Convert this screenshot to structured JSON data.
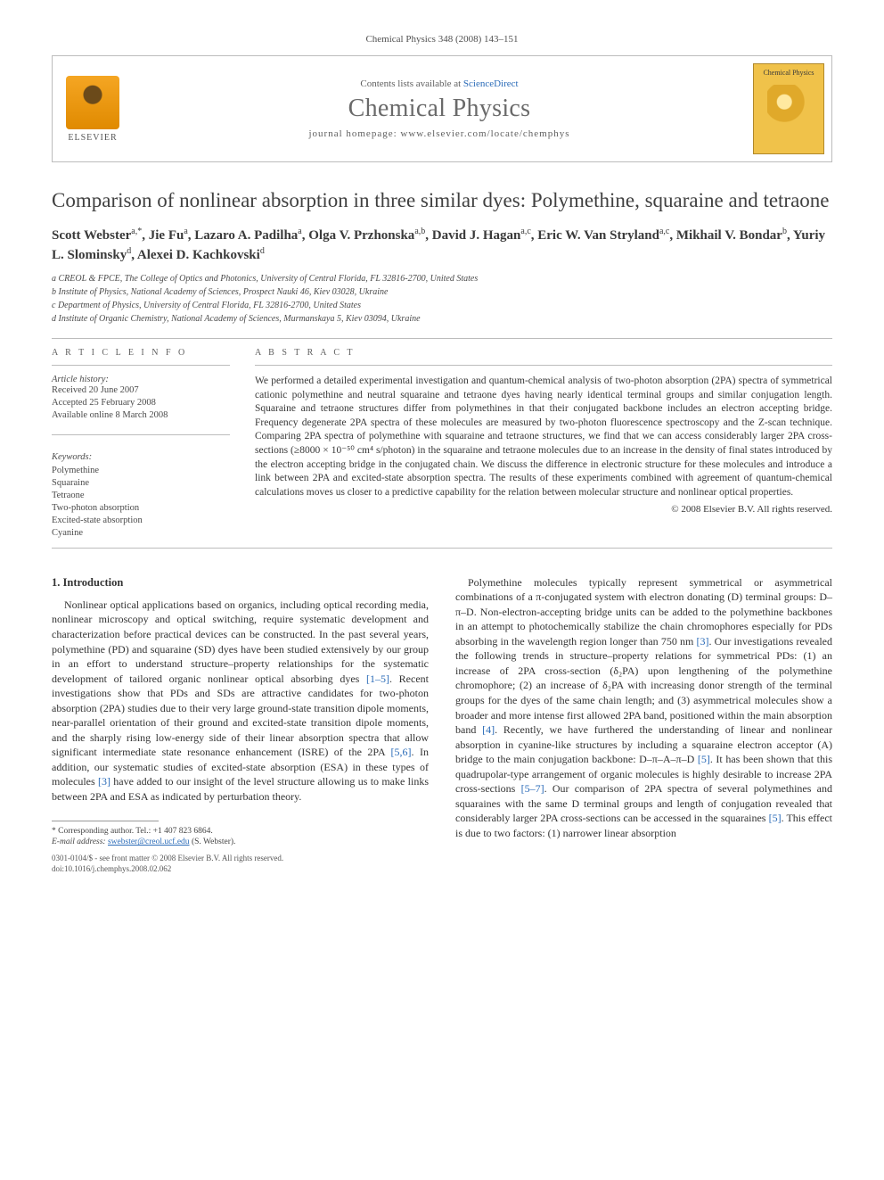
{
  "header": {
    "citation": "Chemical Physics 348 (2008) 143–151",
    "contents_prefix": "Contents lists available at ",
    "contents_link": "ScienceDirect",
    "journal_name": "Chemical Physics",
    "homepage_prefix": "journal homepage: ",
    "homepage_url": "www.elsevier.com/locate/chemphys",
    "publisher": "ELSEVIER",
    "cover_label": "Chemical Physics"
  },
  "article": {
    "title": "Comparison of nonlinear absorption in three similar dyes: Polymethine, squaraine and tetraone",
    "authors_html": "Scott Webster<sup>a,*</sup>, Jie Fu<sup>a</sup>, Lazaro A. Padilha<sup>a</sup>, Olga V. Przhonska<sup>a,b</sup>, David J. Hagan<sup>a,c</sup>, Eric W. Van Stryland<sup>a,c</sup>, Mikhail V. Bondar<sup>b</sup>, Yuriy L. Slominsky<sup>d</sup>, Alexei D. Kachkovski<sup>d</sup>",
    "affiliations": [
      "a CREOL & FPCE, The College of Optics and Photonics, University of Central Florida, FL 32816-2700, United States",
      "b Institute of Physics, National Academy of Sciences, Prospect Nauki 46, Kiev 03028, Ukraine",
      "c Department of Physics, University of Central Florida, FL 32816-2700, United States",
      "d Institute of Organic Chemistry, National Academy of Sciences, Murmanskaya 5, Kiev 03094, Ukraine"
    ]
  },
  "info": {
    "heading": "A R T I C L E   I N F O",
    "history_heading": "Article history:",
    "history": [
      "Received 20 June 2007",
      "Accepted 25 February 2008",
      "Available online 8 March 2008"
    ],
    "keywords_heading": "Keywords:",
    "keywords": [
      "Polymethine",
      "Squaraine",
      "Tetraone",
      "Two-photon absorption",
      "Excited-state absorption",
      "Cyanine"
    ]
  },
  "abstract": {
    "heading": "A B S T R A C T",
    "text": "We performed a detailed experimental investigation and quantum-chemical analysis of two-photon absorption (2PA) spectra of symmetrical cationic polymethine and neutral squaraine and tetraone dyes having nearly identical terminal groups and similar conjugation length. Squaraine and tetraone structures differ from polymethines in that their conjugated backbone includes an electron accepting bridge. Frequency degenerate 2PA spectra of these molecules are measured by two-photon fluorescence spectroscopy and the Z-scan technique. Comparing 2PA spectra of polymethine with squaraine and tetraone structures, we find that we can access considerably larger 2PA cross-sections (≥8000 × 10⁻⁵⁰ cm⁴ s/photon) in the squaraine and tetraone molecules due to an increase in the density of final states introduced by the electron accepting bridge in the conjugated chain. We discuss the difference in electronic structure for these molecules and introduce a link between 2PA and excited-state absorption spectra. The results of these experiments combined with agreement of quantum-chemical calculations moves us closer to a predictive capability for the relation between molecular structure and nonlinear optical properties.",
    "copyright": "© 2008 Elsevier B.V. All rights reserved."
  },
  "body": {
    "section1_heading": "1. Introduction",
    "col1_p1": "Nonlinear optical applications based on organics, including optical recording media, nonlinear microscopy and optical switching, require systematic development and characterization before practical devices can be constructed. In the past several years, polymethine (PD) and squaraine (SD) dyes have been studied extensively by our group in an effort to understand structure–property relationships for the systematic development of tailored organic nonlinear optical absorbing dyes [1–5]. Recent investigations show that PDs and SDs are attractive candidates for two-photon absorption (2PA) studies due to their very large ground-state transition dipole moments, near-parallel orientation of their ground and excited-state transition dipole moments, and the sharply rising low-energy side of their linear absorption spectra that allow significant intermediate state resonance enhancement (ISRE) of the 2PA [5,6]. In addition, our systematic studies of excited-state absorption (ESA) in these types of molecules [3] have added to our insight of the level structure allowing us to make links between 2PA and ESA as indicated by perturbation theory.",
    "col2_p1": "Polymethine molecules typically represent symmetrical or asymmetrical combinations of a π-conjugated system with electron donating (D) terminal groups: D–π–D. Non-electron-accepting bridge units can be added to the polymethine backbones in an attempt to photochemically stabilize the chain chromophores especially for PDs absorbing in the wavelength region longer than 750 nm [3]. Our investigations revealed the following trends in structure–property relations for symmetrical PDs: (1) an increase of 2PA cross-section (δ₂PA) upon lengthening of the polymethine chromophore; (2) an increase of δ₂PA with increasing donor strength of the terminal groups for the dyes of the same chain length; and (3) asymmetrical molecules show a broader and more intense first allowed 2PA band, positioned within the main absorption band [4]. Recently, we have furthered the understanding of linear and nonlinear absorption in cyanine-like structures by including a squaraine electron acceptor (A) bridge to the main conjugation backbone: D–π–A–π–D [5]. It has been shown that this quadrupolar-type arrangement of organic molecules is highly desirable to increase 2PA cross-sections [5–7]. Our comparison of 2PA spectra of several polymethines and squaraines with the same D terminal groups and length of conjugation revealed that considerably larger 2PA cross-sections can be accessed in the squaraines [5]. This effect is due to two factors: (1) narrower linear absorption"
  },
  "footnote": {
    "corr": "* Corresponding author. Tel.: +1 407 823 6864.",
    "email_label": "E-mail address: ",
    "email": "swebster@creol.ucf.edu",
    "email_suffix": " (S. Webster)."
  },
  "footer": {
    "line1": "0301-0104/$ - see front matter © 2008 Elsevier B.V. All rights reserved.",
    "line2": "doi:10.1016/j.chemphys.2008.02.062"
  },
  "colors": {
    "link": "#2a6bb8",
    "rule": "#bcbcbc",
    "text": "#303030",
    "elsevier_orange": "#f5a623",
    "cover_yellow": "#f0c24a"
  }
}
